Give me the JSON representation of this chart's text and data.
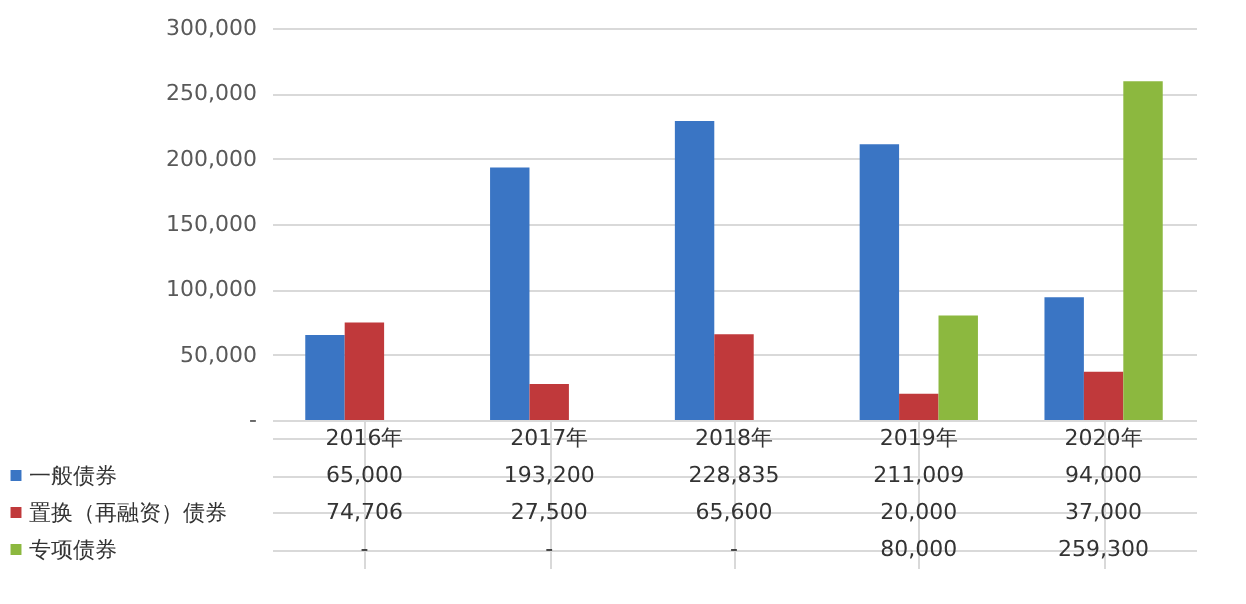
{
  "chart_data": {
    "type": "bar",
    "categories": [
      "2016年",
      "2017年",
      "2018年",
      "2019年",
      "2020年"
    ],
    "series": [
      {
        "name": "一般债券",
        "color": "#3a75c4",
        "values": [
          65000,
          193200,
          228835,
          211009,
          94000
        ],
        "value_labels": [
          "65,000",
          "193,200",
          "228,835",
          "211,009",
          "94,000"
        ]
      },
      {
        "name": "置换（再融资）债券",
        "color": "#c0393b",
        "values": [
          74706,
          27500,
          65600,
          20000,
          37000
        ],
        "value_labels": [
          "74,706",
          "27,500",
          "65,600",
          "20,000",
          "37,000"
        ]
      },
      {
        "name": "专项债券",
        "color": "#8cb83f",
        "values": [
          null,
          null,
          null,
          80000,
          259300
        ],
        "value_labels": [
          "-",
          "-",
          "-",
          "80,000",
          "259,300"
        ]
      }
    ],
    "ylim": [
      0,
      300000
    ],
    "yticks": [
      {
        "value": 0,
        "label": "-"
      },
      {
        "value": 50000,
        "label": "50,000"
      },
      {
        "value": 100000,
        "label": "100,000"
      },
      {
        "value": 150000,
        "label": "150,000"
      },
      {
        "value": 200000,
        "label": "200,000"
      },
      {
        "value": 250000,
        "label": "250,000"
      },
      {
        "value": 300000,
        "label": "300,000"
      }
    ],
    "grid": "y",
    "legend": "bottom"
  }
}
